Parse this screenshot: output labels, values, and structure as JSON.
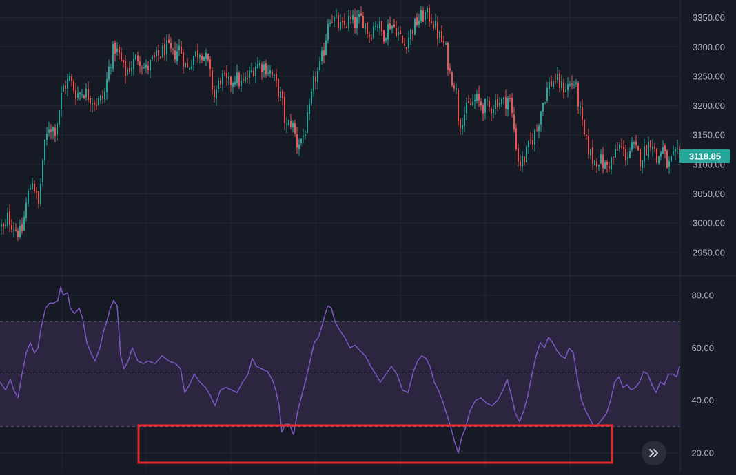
{
  "colors": {
    "background": "#161a25",
    "grid": "#232733",
    "up": "#26a69a",
    "down": "#ef5350",
    "rsi_line": "#7e57c2",
    "rsi_band": "#2b2540",
    "price_tag": "#26a69a",
    "axis_text": "#b2b5be",
    "highlight": "#e8262b"
  },
  "price_tag": "3118.85",
  "scroll_button": {
    "icon": "double-chevron-right-icon"
  },
  "chart_data": [
    {
      "type": "candlestick",
      "title": "",
      "ylim": [
        2910,
        3380
      ],
      "y_ticks": [
        "2950.00",
        "3000.00",
        "3050.00",
        "3100.00",
        "3150.00",
        "3200.00",
        "3250.00",
        "3300.00",
        "3350.00"
      ],
      "last_price": 3118.85,
      "close_path": [
        [
          0,
          2995
        ],
        [
          6,
          2985
        ],
        [
          10,
          3010
        ],
        [
          16,
          3000
        ],
        [
          22,
          2990
        ],
        [
          30,
          2980
        ],
        [
          38,
          3040
        ],
        [
          46,
          3075
        ],
        [
          55,
          3030
        ],
        [
          62,
          3120
        ],
        [
          70,
          3165
        ],
        [
          80,
          3160
        ],
        [
          90,
          3230
        ],
        [
          100,
          3245
        ],
        [
          110,
          3220
        ],
        [
          120,
          3225
        ],
        [
          130,
          3215
        ],
        [
          140,
          3205
        ],
        [
          150,
          3215
        ],
        [
          158,
          3270
        ],
        [
          165,
          3300
        ],
        [
          172,
          3285
        ],
        [
          180,
          3255
        ],
        [
          190,
          3270
        ],
        [
          200,
          3285
        ],
        [
          210,
          3260
        ],
        [
          220,
          3275
        ],
        [
          230,
          3285
        ],
        [
          240,
          3300
        ],
        [
          250,
          3285
        ],
        [
          260,
          3300
        ],
        [
          270,
          3260
        ],
        [
          280,
          3285
        ],
        [
          290,
          3295
        ],
        [
          300,
          3275
        ],
        [
          310,
          3215
        ],
        [
          320,
          3250
        ],
        [
          330,
          3235
        ],
        [
          340,
          3250
        ],
        [
          350,
          3235
        ],
        [
          360,
          3250
        ],
        [
          370,
          3270
        ],
        [
          380,
          3270
        ],
        [
          390,
          3260
        ],
        [
          400,
          3235
        ],
        [
          408,
          3210
        ],
        [
          414,
          3160
        ],
        [
          422,
          3175
        ],
        [
          430,
          3135
        ],
        [
          440,
          3150
        ],
        [
          448,
          3190
        ],
        [
          455,
          3245
        ],
        [
          462,
          3260
        ],
        [
          470,
          3300
        ],
        [
          476,
          3355
        ],
        [
          485,
          3345
        ],
        [
          495,
          3330
        ],
        [
          505,
          3345
        ],
        [
          515,
          3340
        ],
        [
          525,
          3350
        ],
        [
          535,
          3320
        ],
        [
          545,
          3345
        ],
        [
          555,
          3320
        ],
        [
          565,
          3340
        ],
        [
          575,
          3330
        ],
        [
          585,
          3300
        ],
        [
          595,
          3325
        ],
        [
          605,
          3345
        ],
        [
          615,
          3355
        ],
        [
          625,
          3350
        ],
        [
          635,
          3320
        ],
        [
          645,
          3300
        ],
        [
          652,
          3255
        ],
        [
          660,
          3235
        ],
        [
          665,
          3170
        ],
        [
          672,
          3185
        ],
        [
          680,
          3200
        ],
        [
          690,
          3210
        ],
        [
          700,
          3200
        ],
        [
          710,
          3195
        ],
        [
          720,
          3210
        ],
        [
          730,
          3205
        ],
        [
          738,
          3215
        ],
        [
          745,
          3160
        ],
        [
          752,
          3100
        ],
        [
          760,
          3110
        ],
        [
          770,
          3140
        ],
        [
          778,
          3160
        ],
        [
          785,
          3200
        ],
        [
          795,
          3235
        ],
        [
          805,
          3245
        ],
        [
          815,
          3230
        ],
        [
          825,
          3235
        ],
        [
          833,
          3240
        ],
        [
          840,
          3195
        ],
        [
          846,
          3150
        ],
        [
          852,
          3130
        ],
        [
          860,
          3105
        ],
        [
          868,
          3110
        ],
        [
          878,
          3095
        ],
        [
          888,
          3110
        ],
        [
          898,
          3130
        ],
        [
          908,
          3115
        ],
        [
          918,
          3130
        ],
        [
          928,
          3110
        ],
        [
          938,
          3130
        ],
        [
          945,
          3145
        ],
        [
          952,
          3105
        ],
        [
          960,
          3130
        ],
        [
          968,
          3095
        ],
        [
          976,
          3110
        ],
        [
          986,
          3119
        ]
      ]
    },
    {
      "type": "line",
      "title": "",
      "ylim": [
        13,
        87
      ],
      "y_ticks": [
        "20.00",
        "40.00",
        "60.00",
        "80.00"
      ],
      "band": [
        30,
        70
      ],
      "midline": 50,
      "series": [
        {
          "values": [
            [
              0,
              47
            ],
            [
              8,
              44
            ],
            [
              15,
              48
            ],
            [
              20,
              44
            ],
            [
              26,
              41
            ],
            [
              32,
              50
            ],
            [
              38,
              58
            ],
            [
              44,
              62
            ],
            [
              50,
              58
            ],
            [
              55,
              60
            ],
            [
              60,
              68
            ],
            [
              66,
              75
            ],
            [
              72,
              77
            ],
            [
              78,
              77
            ],
            [
              84,
              78
            ],
            [
              88,
              83
            ],
            [
              92,
              80
            ],
            [
              98,
              81
            ],
            [
              102,
              75
            ],
            [
              108,
              73
            ],
            [
              115,
              75
            ],
            [
              120,
              71
            ],
            [
              126,
              62
            ],
            [
              132,
              58
            ],
            [
              138,
              55
            ],
            [
              145,
              60
            ],
            [
              150,
              66
            ],
            [
              155,
              70
            ],
            [
              160,
              75
            ],
            [
              165,
              78
            ],
            [
              170,
              76
            ],
            [
              175,
              57
            ],
            [
              180,
              52
            ],
            [
              186,
              55
            ],
            [
              192,
              60
            ],
            [
              200,
              55
            ],
            [
              208,
              54
            ],
            [
              215,
              55
            ],
            [
              225,
              54
            ],
            [
              235,
              57
            ],
            [
              245,
              55
            ],
            [
              255,
              54
            ],
            [
              262,
              52
            ],
            [
              268,
              43
            ],
            [
              275,
              46
            ],
            [
              282,
              50
            ],
            [
              290,
              47
            ],
            [
              298,
              45
            ],
            [
              305,
              42
            ],
            [
              312,
              38
            ],
            [
              320,
              44
            ],
            [
              328,
              45
            ],
            [
              336,
              44
            ],
            [
              344,
              43
            ],
            [
              352,
              47
            ],
            [
              360,
              50
            ],
            [
              366,
              56
            ],
            [
              372,
              53
            ],
            [
              380,
              52
            ],
            [
              388,
              51
            ],
            [
              395,
              48
            ],
            [
              400,
              44
            ],
            [
              405,
              38
            ],
            [
              409,
              28
            ],
            [
              414,
              31
            ],
            [
              420,
              31
            ],
            [
              426,
              27
            ],
            [
              432,
              36
            ],
            [
              438,
              42
            ],
            [
              444,
              48
            ],
            [
              450,
              55
            ],
            [
              456,
              62
            ],
            [
              462,
              64
            ],
            [
              468,
              69
            ],
            [
              472,
              73
            ],
            [
              476,
              76
            ],
            [
              481,
              75
            ],
            [
              486,
              70
            ],
            [
              492,
              67
            ],
            [
              500,
              64
            ],
            [
              508,
              60
            ],
            [
              515,
              61
            ],
            [
              522,
              59
            ],
            [
              530,
              57
            ],
            [
              538,
              53
            ],
            [
              545,
              50
            ],
            [
              552,
              47
            ],
            [
              560,
              50
            ],
            [
              568,
              53
            ],
            [
              576,
              50
            ],
            [
              584,
              44
            ],
            [
              592,
              43
            ],
            [
              600,
              51
            ],
            [
              606,
              55
            ],
            [
              612,
              57
            ],
            [
              618,
              56
            ],
            [
              624,
              53
            ],
            [
              630,
              47
            ],
            [
              636,
              44
            ],
            [
              642,
              40
            ],
            [
              648,
              35
            ],
            [
              654,
              30
            ],
            [
              660,
              24
            ],
            [
              665,
              20
            ],
            [
              670,
              26
            ],
            [
              676,
              30
            ],
            [
              682,
              36
            ],
            [
              690,
              40
            ],
            [
              698,
              41
            ],
            [
              706,
              39
            ],
            [
              714,
              38
            ],
            [
              722,
              40
            ],
            [
              730,
              44
            ],
            [
              736,
              48
            ],
            [
              742,
              42
            ],
            [
              748,
              35
            ],
            [
              754,
              32
            ],
            [
              760,
              36
            ],
            [
              766,
              42
            ],
            [
              772,
              50
            ],
            [
              778,
              57
            ],
            [
              784,
              62
            ],
            [
              790,
              60
            ],
            [
              796,
              64
            ],
            [
              802,
              62
            ],
            [
              808,
              59
            ],
            [
              814,
              57
            ],
            [
              820,
              56
            ],
            [
              826,
              60
            ],
            [
              832,
              58
            ],
            [
              838,
              48
            ],
            [
              844,
              40
            ],
            [
              850,
              36
            ],
            [
              856,
              33
            ],
            [
              862,
              30
            ],
            [
              868,
              31
            ],
            [
              874,
              33
            ],
            [
              880,
              35
            ],
            [
              886,
              40
            ],
            [
              892,
              47
            ],
            [
              898,
              49
            ],
            [
              904,
              45
            ],
            [
              910,
              46
            ],
            [
              916,
              44
            ],
            [
              922,
              45
            ],
            [
              928,
              47
            ],
            [
              934,
              51
            ],
            [
              940,
              50
            ],
            [
              946,
              46
            ],
            [
              952,
              43
            ],
            [
              958,
              47
            ],
            [
              964,
              46
            ],
            [
              970,
              50
            ],
            [
              976,
              50
            ],
            [
              982,
              49
            ],
            [
              986,
              53
            ]
          ]
        }
      ]
    }
  ]
}
